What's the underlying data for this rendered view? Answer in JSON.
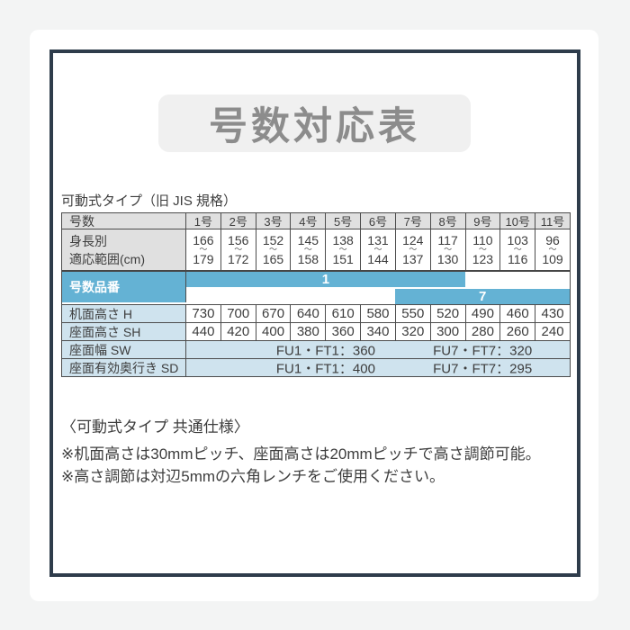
{
  "page": {
    "title": "号数対応表"
  },
  "table": {
    "caption": "可動式タイプ（旧 JIS 規格）",
    "header": {
      "label": "号数",
      "sizes": [
        "1号",
        "2号",
        "3号",
        "4号",
        "5号",
        "6号",
        "7号",
        "8号",
        "9号",
        "10号",
        "11号"
      ]
    },
    "height_range": {
      "label_line1": "身長別",
      "label_line2": "適応範囲(cm)",
      "separator": "〜",
      "mins": [
        166,
        156,
        152,
        145,
        138,
        131,
        124,
        117,
        110,
        103,
        96
      ],
      "maxs": [
        179,
        172,
        165,
        158,
        151,
        144,
        137,
        130,
        123,
        116,
        109
      ]
    },
    "product_number": {
      "label": "号数品番",
      "series1_label": "1",
      "series1_span": "1号-8号",
      "series7_label": "7",
      "series7_span": "7号-11号"
    },
    "desk_height": {
      "label": "机面高さ H",
      "values": [
        730,
        700,
        670,
        640,
        610,
        580,
        550,
        520,
        490,
        460,
        430
      ]
    },
    "seat_height": {
      "label": "座面高さ SH",
      "values": [
        440,
        420,
        400,
        380,
        360,
        340,
        320,
        300,
        280,
        260,
        240
      ]
    },
    "seat_width": {
      "label": "座面幅 SW",
      "value_1": "FU1・FT1：360",
      "value_7": "FU7・FT7：320"
    },
    "seat_depth": {
      "label": "座面有効奥行き SD",
      "value_1": "FU1・FT1：400",
      "value_7": "FU7・FT7：295"
    }
  },
  "notes": {
    "heading": "〈可動式タイプ 共通仕様〉",
    "line1": "※机面高さは30mmピッチ、座面高さは20mmピッチで高さ調節可能。",
    "line2": "※高さ調節は対辺5mmの六角レンチをご使用ください。"
  },
  "colors": {
    "accent_blue": "#64b2d4",
    "light_blue": "#cfe3ee",
    "frame_navy": "#2e3c4b",
    "header_gray": "#e0e0e0",
    "title_gray": "#8c8c8c"
  }
}
